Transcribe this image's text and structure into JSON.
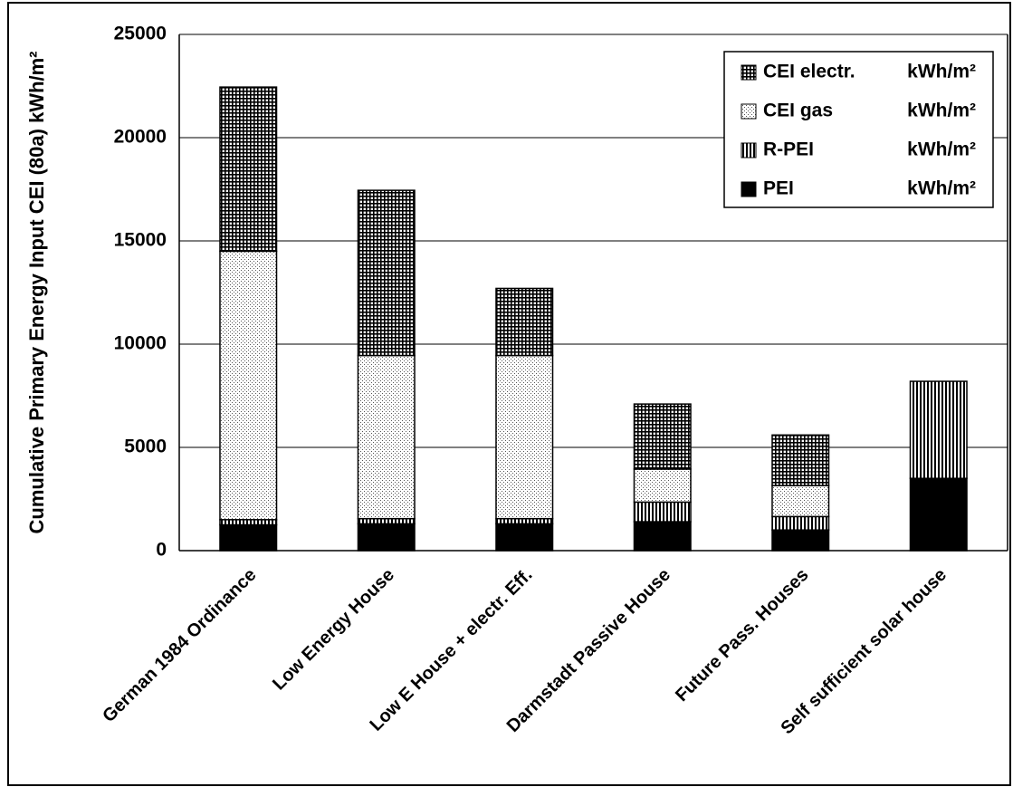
{
  "chart_data": {
    "type": "bar",
    "stacked": true,
    "title": "",
    "xlabel": "",
    "ylabel": "Cumulative Primary Energy Input CEI (80a)  kWh/m²",
    "ylim": [
      0,
      25000
    ],
    "yticks": [
      "0",
      "5000",
      "10000",
      "15000",
      "20000",
      "25000"
    ],
    "grid": true,
    "legend_position": "top-right",
    "categories": [
      "German 1984  Ordinance",
      "Low Energy House",
      "Low E House  + electr. Eff.",
      "Darmstadt  Passive House",
      "Future  Pass. Houses",
      "Self sufficient solar house"
    ],
    "series": [
      {
        "name": "PEI",
        "unit": "kWh/m²",
        "pattern": "solid",
        "values": [
          1250,
          1300,
          1300,
          1400,
          1000,
          3500
        ]
      },
      {
        "name": "R-PEI",
        "unit": "kWh/m²",
        "pattern": "vertical",
        "values": [
          250,
          250,
          250,
          950,
          650,
          4700
        ]
      },
      {
        "name": "CEI gas",
        "unit": "kWh/m²",
        "pattern": "dots",
        "values": [
          13000,
          7900,
          7900,
          1600,
          1500,
          0
        ]
      },
      {
        "name": "CEI electr.",
        "unit": "kWh/m²",
        "pattern": "crosshatch",
        "values": [
          7950,
          8000,
          3250,
          3150,
          2450,
          0
        ]
      }
    ],
    "legend_order": [
      "CEI electr.",
      "CEI gas",
      "R-PEI",
      "PEI"
    ]
  }
}
